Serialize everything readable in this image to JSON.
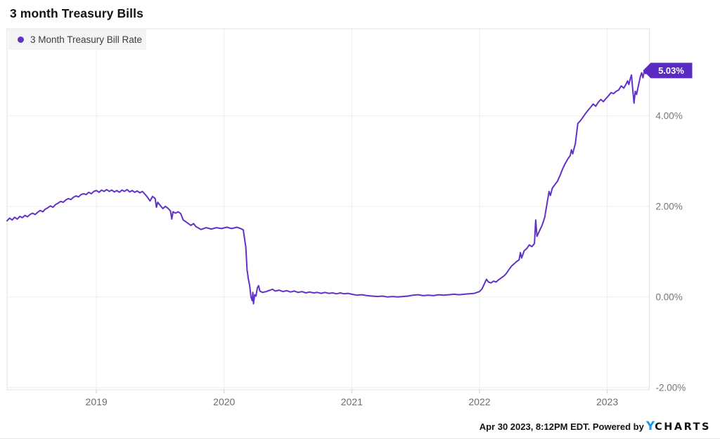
{
  "page": {
    "title": "3 month Treasury Bills"
  },
  "legend": {
    "label": "3 Month Treasury Bill Rate"
  },
  "footer": {
    "timestamp": "Apr 30 2023, 8:12PM EDT. Powered by",
    "logo_y": "Y",
    "logo_rest": "CHARTS"
  },
  "colors": {
    "line": "#6231c8",
    "badge": "#5a2bc2",
    "badge_text": "#ffffff",
    "grid": "#ededed",
    "border": "#e3e3e3",
    "tick": "#cfcfcf",
    "y_label": "#757575",
    "x_label": "#6d6d6d",
    "legend_bg": "#f4f4f4",
    "logo_blue": "#1a97e8"
  },
  "chart_data": {
    "type": "line",
    "title": "3 month Treasury Bills",
    "xlabel": "",
    "ylabel": "",
    "grid": true,
    "legend_position": "top-left",
    "x_range": [
      2018.3,
      2023.33
    ],
    "y_range": [
      -2.05,
      5.92
    ],
    "x_ticks": [
      {
        "label": "2019",
        "year": 2019
      },
      {
        "label": "2020",
        "year": 2020
      },
      {
        "label": "2021",
        "year": 2021
      },
      {
        "label": "2022",
        "year": 2022
      },
      {
        "label": "2023",
        "year": 2023
      }
    ],
    "y_ticks": [
      {
        "label": "4.00%",
        "value": 4
      },
      {
        "label": "2.00%",
        "value": 2
      },
      {
        "label": "0.00%",
        "value": 0
      },
      {
        "label": "-2.00%",
        "value": -2
      }
    ],
    "badge": {
      "label": "5.03%",
      "value": 5.03
    },
    "series": [
      {
        "name": "3 Month Treasury Bill Rate",
        "points": [
          [
            2018.3,
            1.68
          ],
          [
            2018.32,
            1.74
          ],
          [
            2018.34,
            1.7
          ],
          [
            2018.36,
            1.76
          ],
          [
            2018.38,
            1.72
          ],
          [
            2018.4,
            1.78
          ],
          [
            2018.42,
            1.75
          ],
          [
            2018.44,
            1.8
          ],
          [
            2018.46,
            1.77
          ],
          [
            2018.48,
            1.82
          ],
          [
            2018.5,
            1.85
          ],
          [
            2018.52,
            1.82
          ],
          [
            2018.54,
            1.87
          ],
          [
            2018.56,
            1.91
          ],
          [
            2018.58,
            1.88
          ],
          [
            2018.6,
            1.94
          ],
          [
            2018.62,
            1.97
          ],
          [
            2018.64,
            2.01
          ],
          [
            2018.66,
            1.98
          ],
          [
            2018.68,
            2.04
          ],
          [
            2018.7,
            2.07
          ],
          [
            2018.72,
            2.11
          ],
          [
            2018.74,
            2.09
          ],
          [
            2018.76,
            2.14
          ],
          [
            2018.78,
            2.17
          ],
          [
            2018.8,
            2.15
          ],
          [
            2018.82,
            2.2
          ],
          [
            2018.84,
            2.23
          ],
          [
            2018.86,
            2.21
          ],
          [
            2018.88,
            2.26
          ],
          [
            2018.9,
            2.28
          ],
          [
            2018.92,
            2.26
          ],
          [
            2018.94,
            2.31
          ],
          [
            2018.96,
            2.28
          ],
          [
            2018.98,
            2.33
          ],
          [
            2019.0,
            2.35
          ],
          [
            2019.02,
            2.31
          ],
          [
            2019.04,
            2.36
          ],
          [
            2019.06,
            2.33
          ],
          [
            2019.08,
            2.37
          ],
          [
            2019.1,
            2.33
          ],
          [
            2019.12,
            2.36
          ],
          [
            2019.14,
            2.32
          ],
          [
            2019.16,
            2.35
          ],
          [
            2019.18,
            2.31
          ],
          [
            2019.2,
            2.36
          ],
          [
            2019.22,
            2.33
          ],
          [
            2019.24,
            2.37
          ],
          [
            2019.26,
            2.32
          ],
          [
            2019.28,
            2.35
          ],
          [
            2019.3,
            2.31
          ],
          [
            2019.32,
            2.34
          ],
          [
            2019.34,
            2.3
          ],
          [
            2019.36,
            2.33
          ],
          [
            2019.38,
            2.27
          ],
          [
            2019.4,
            2.2
          ],
          [
            2019.42,
            2.12
          ],
          [
            2019.44,
            2.22
          ],
          [
            2019.46,
            2.17
          ],
          [
            2019.47,
            1.98
          ],
          [
            2019.48,
            2.09
          ],
          [
            2019.5,
            2.02
          ],
          [
            2019.52,
            1.95
          ],
          [
            2019.54,
            2.0
          ],
          [
            2019.56,
            1.96
          ],
          [
            2019.58,
            1.9
          ],
          [
            2019.59,
            1.72
          ],
          [
            2019.6,
            1.88
          ],
          [
            2019.62,
            1.85
          ],
          [
            2019.64,
            1.88
          ],
          [
            2019.66,
            1.84
          ],
          [
            2019.68,
            1.7
          ],
          [
            2019.7,
            1.66
          ],
          [
            2019.72,
            1.62
          ],
          [
            2019.74,
            1.58
          ],
          [
            2019.76,
            1.62
          ],
          [
            2019.78,
            1.55
          ],
          [
            2019.8,
            1.52
          ],
          [
            2019.82,
            1.49
          ],
          [
            2019.86,
            1.53
          ],
          [
            2019.9,
            1.5
          ],
          [
            2019.94,
            1.53
          ],
          [
            2019.98,
            1.51
          ],
          [
            2020.02,
            1.54
          ],
          [
            2020.06,
            1.51
          ],
          [
            2020.1,
            1.54
          ],
          [
            2020.13,
            1.51
          ],
          [
            2020.15,
            1.48
          ],
          [
            2020.17,
            1.1
          ],
          [
            2020.18,
            0.6
          ],
          [
            2020.19,
            0.4
          ],
          [
            2020.2,
            0.25
          ],
          [
            2020.21,
            0.0
          ],
          [
            2020.22,
            -0.08
          ],
          [
            2020.225,
            0.1
          ],
          [
            2020.23,
            -0.15
          ],
          [
            2020.24,
            0.05
          ],
          [
            2020.25,
            0.02
          ],
          [
            2020.26,
            0.2
          ],
          [
            2020.27,
            0.25
          ],
          [
            2020.28,
            0.13
          ],
          [
            2020.3,
            0.1
          ],
          [
            2020.33,
            0.12
          ],
          [
            2020.36,
            0.15
          ],
          [
            2020.38,
            0.17
          ],
          [
            2020.4,
            0.13
          ],
          [
            2020.43,
            0.15
          ],
          [
            2020.46,
            0.12
          ],
          [
            2020.49,
            0.14
          ],
          [
            2020.52,
            0.11
          ],
          [
            2020.55,
            0.13
          ],
          [
            2020.58,
            0.1
          ],
          [
            2020.61,
            0.12
          ],
          [
            2020.64,
            0.09
          ],
          [
            2020.67,
            0.11
          ],
          [
            2020.7,
            0.09
          ],
          [
            2020.73,
            0.1
          ],
          [
            2020.76,
            0.08
          ],
          [
            2020.79,
            0.1
          ],
          [
            2020.82,
            0.08
          ],
          [
            2020.85,
            0.09
          ],
          [
            2020.88,
            0.07
          ],
          [
            2020.91,
            0.09
          ],
          [
            2020.94,
            0.07
          ],
          [
            2020.97,
            0.08
          ],
          [
            2021.0,
            0.06
          ],
          [
            2021.04,
            0.04
          ],
          [
            2021.08,
            0.05
          ],
          [
            2021.12,
            0.03
          ],
          [
            2021.16,
            0.02
          ],
          [
            2021.2,
            0.01
          ],
          [
            2021.24,
            0.02
          ],
          [
            2021.28,
            0.0
          ],
          [
            2021.32,
            0.01
          ],
          [
            2021.36,
            0.0
          ],
          [
            2021.4,
            0.01
          ],
          [
            2021.44,
            0.02
          ],
          [
            2021.48,
            0.04
          ],
          [
            2021.52,
            0.05
          ],
          [
            2021.56,
            0.03
          ],
          [
            2021.6,
            0.04
          ],
          [
            2021.64,
            0.03
          ],
          [
            2021.68,
            0.05
          ],
          [
            2021.72,
            0.04
          ],
          [
            2021.76,
            0.05
          ],
          [
            2021.8,
            0.06
          ],
          [
            2021.84,
            0.05
          ],
          [
            2021.88,
            0.06
          ],
          [
            2021.92,
            0.07
          ],
          [
            2021.96,
            0.08
          ],
          [
            2022.0,
            0.12
          ],
          [
            2022.02,
            0.18
          ],
          [
            2022.04,
            0.3
          ],
          [
            2022.055,
            0.39
          ],
          [
            2022.07,
            0.33
          ],
          [
            2022.09,
            0.31
          ],
          [
            2022.11,
            0.35
          ],
          [
            2022.13,
            0.33
          ],
          [
            2022.15,
            0.38
          ],
          [
            2022.17,
            0.42
          ],
          [
            2022.19,
            0.46
          ],
          [
            2022.21,
            0.52
          ],
          [
            2022.23,
            0.6
          ],
          [
            2022.25,
            0.68
          ],
          [
            2022.27,
            0.73
          ],
          [
            2022.29,
            0.78
          ],
          [
            2022.31,
            0.82
          ],
          [
            2022.32,
            0.98
          ],
          [
            2022.33,
            0.86
          ],
          [
            2022.35,
            1.02
          ],
          [
            2022.37,
            1.07
          ],
          [
            2022.39,
            1.15
          ],
          [
            2022.41,
            1.11
          ],
          [
            2022.43,
            1.18
          ],
          [
            2022.44,
            1.7
          ],
          [
            2022.45,
            1.34
          ],
          [
            2022.47,
            1.46
          ],
          [
            2022.49,
            1.58
          ],
          [
            2022.51,
            1.75
          ],
          [
            2022.53,
            2.08
          ],
          [
            2022.545,
            2.33
          ],
          [
            2022.555,
            2.24
          ],
          [
            2022.57,
            2.4
          ],
          [
            2022.59,
            2.48
          ],
          [
            2022.61,
            2.55
          ],
          [
            2022.63,
            2.68
          ],
          [
            2022.65,
            2.82
          ],
          [
            2022.67,
            2.94
          ],
          [
            2022.69,
            3.04
          ],
          [
            2022.71,
            3.12
          ],
          [
            2022.72,
            3.25
          ],
          [
            2022.73,
            3.16
          ],
          [
            2022.75,
            3.38
          ],
          [
            2022.76,
            3.6
          ],
          [
            2022.77,
            3.83
          ],
          [
            2022.79,
            3.89
          ],
          [
            2022.81,
            3.97
          ],
          [
            2022.83,
            4.05
          ],
          [
            2022.85,
            4.12
          ],
          [
            2022.87,
            4.19
          ],
          [
            2022.89,
            4.26
          ],
          [
            2022.91,
            4.21
          ],
          [
            2022.93,
            4.3
          ],
          [
            2022.95,
            4.36
          ],
          [
            2022.97,
            4.31
          ],
          [
            2022.99,
            4.38
          ],
          [
            2023.01,
            4.44
          ],
          [
            2023.03,
            4.51
          ],
          [
            2023.05,
            4.49
          ],
          [
            2023.07,
            4.54
          ],
          [
            2023.09,
            4.57
          ],
          [
            2023.11,
            4.66
          ],
          [
            2023.13,
            4.61
          ],
          [
            2023.15,
            4.71
          ],
          [
            2023.16,
            4.77
          ],
          [
            2023.17,
            4.69
          ],
          [
            2023.18,
            4.81
          ],
          [
            2023.19,
            4.9
          ],
          [
            2023.2,
            4.58
          ],
          [
            2023.21,
            4.28
          ],
          [
            2023.22,
            4.54
          ],
          [
            2023.23,
            4.47
          ],
          [
            2023.24,
            4.61
          ],
          [
            2023.25,
            4.74
          ],
          [
            2023.26,
            4.87
          ],
          [
            2023.27,
            4.95
          ],
          [
            2023.28,
            4.84
          ],
          [
            2023.29,
            4.98
          ],
          [
            2023.3,
            4.93
          ],
          [
            2023.31,
            5.0
          ],
          [
            2023.33,
            5.03
          ]
        ]
      }
    ]
  }
}
